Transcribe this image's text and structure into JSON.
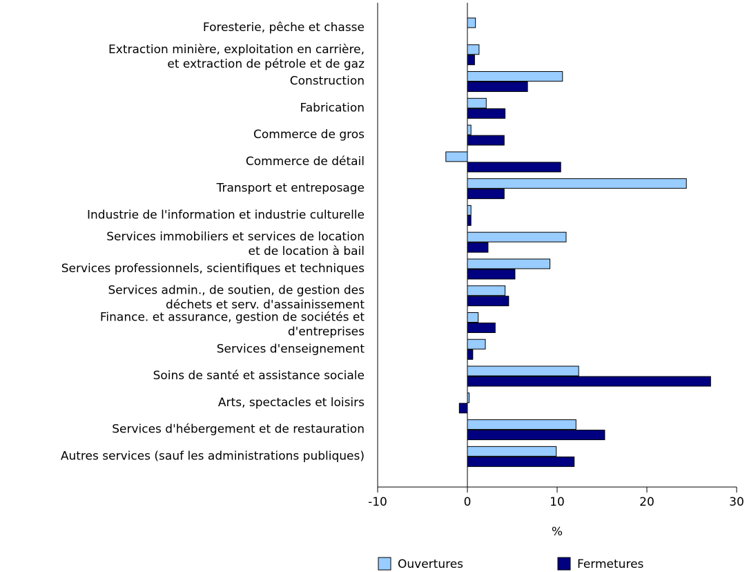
{
  "chart_data": {
    "type": "bar",
    "orientation": "horizontal",
    "categories": [
      [
        "Foresterie, pêche et chasse"
      ],
      [
        "Extraction minière, exploitation en carrière,",
        "et extraction de pétrole et de gaz"
      ],
      [
        "Construction"
      ],
      [
        "Fabrication"
      ],
      [
        "Commerce de gros"
      ],
      [
        "Commerce de détail"
      ],
      [
        "Transport et entreposage"
      ],
      [
        "Industrie de l'information et industrie culturelle"
      ],
      [
        "Services immobiliers et services de location",
        "et de location à bail"
      ],
      [
        "Services professionnels, scientifiques et techniques"
      ],
      [
        "Services admin., de soutien, de gestion des",
        "déchets et serv. d'assainissement"
      ],
      [
        "Finance. et assurance, gestion de sociétés et",
        "d'entreprises"
      ],
      [
        "Services d'enseignement"
      ],
      [
        "Soins de santé et assistance sociale"
      ],
      [
        "Arts, spectacles et loisirs"
      ],
      [
        "Services d'hébergement et de restauration"
      ],
      [
        "Autres services (sauf les administrations publiques)"
      ]
    ],
    "series": [
      {
        "name": "Ouvertures",
        "color": "#99ccff",
        "values": [
          0.9,
          1.3,
          10.6,
          2.1,
          0.4,
          -2.4,
          24.4,
          0.4,
          11.0,
          9.2,
          4.2,
          1.2,
          2.0,
          12.4,
          0.2,
          12.1,
          9.9
        ]
      },
      {
        "name": "Fermetures",
        "color": "#000080",
        "values": [
          0,
          0.8,
          6.7,
          4.2,
          4.1,
          10.4,
          4.1,
          0.4,
          2.3,
          5.3,
          4.6,
          3.1,
          0.6,
          27.1,
          -0.9,
          15.3,
          11.9
        ]
      }
    ],
    "xlabel": "%",
    "xlim": [
      -10,
      30
    ],
    "xticks": [
      -10,
      0,
      10,
      20,
      30
    ]
  }
}
